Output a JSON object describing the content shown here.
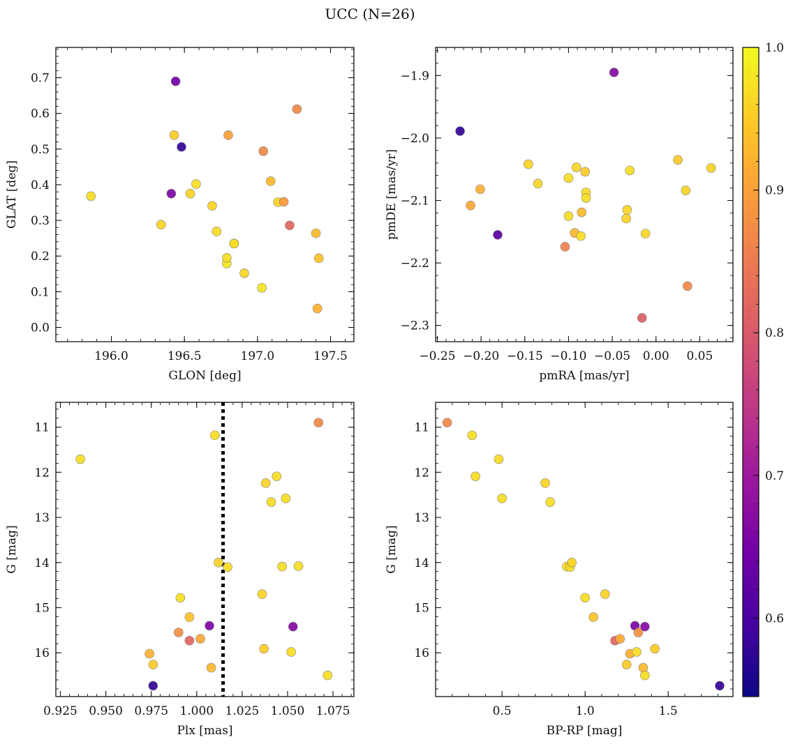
{
  "figure": {
    "title": "UCC (N=26)"
  },
  "colorbar": {
    "min": 0.545,
    "max": 1.0,
    "ticks": [
      0.6,
      0.7,
      0.8,
      0.9,
      1.0
    ],
    "tick_labels": [
      "0.6",
      "0.7",
      "0.8",
      "0.9",
      "1.0"
    ],
    "colormap": "plasma",
    "stops": [
      "#0d0887",
      "#46039f",
      "#7201a8",
      "#9c179e",
      "#bd3786",
      "#d8576b",
      "#ed7953",
      "#fb9f3a",
      "#fdca26",
      "#f0f921"
    ]
  },
  "chart_data": [
    {
      "type": "scatter",
      "id": "glon-glat",
      "xlabel": "GLON [deg]",
      "ylabel": "GLAT [deg]",
      "xlim": [
        195.62,
        197.66
      ],
      "ylim": [
        -0.04,
        0.785
      ],
      "y_inverted": false,
      "xticks": [
        196.0,
        196.5,
        197.0,
        197.5
      ],
      "xtick_labels": [
        "196.0",
        "196.5",
        "197.0",
        "197.5"
      ],
      "yticks": [
        0.0,
        0.1,
        0.2,
        0.3,
        0.4,
        0.5,
        0.6,
        0.7
      ],
      "ytick_labels": [
        "0.0",
        "0.1",
        "0.2",
        "0.3",
        "0.4",
        "0.5",
        "0.6",
        "0.7"
      ],
      "points": [
        {
          "x": 195.86,
          "y": 0.368,
          "c": 0.97
        },
        {
          "x": 196.34,
          "y": 0.288,
          "c": 0.96
        },
        {
          "x": 196.41,
          "y": 0.375,
          "c": 0.66
        },
        {
          "x": 196.43,
          "y": 0.539,
          "c": 0.95
        },
        {
          "x": 196.44,
          "y": 0.69,
          "c": 0.65
        },
        {
          "x": 196.48,
          "y": 0.506,
          "c": 0.58
        },
        {
          "x": 196.54,
          "y": 0.375,
          "c": 0.96
        },
        {
          "x": 196.58,
          "y": 0.402,
          "c": 0.97
        },
        {
          "x": 196.69,
          "y": 0.341,
          "c": 0.96
        },
        {
          "x": 196.72,
          "y": 0.269,
          "c": 0.97
        },
        {
          "x": 196.79,
          "y": 0.179,
          "c": 0.98
        },
        {
          "x": 196.79,
          "y": 0.195,
          "c": 0.97
        },
        {
          "x": 196.8,
          "y": 0.539,
          "c": 0.9
        },
        {
          "x": 196.84,
          "y": 0.235,
          "c": 0.96
        },
        {
          "x": 196.84,
          "y": 0.235,
          "c": 0.97
        },
        {
          "x": 196.91,
          "y": 0.152,
          "c": 0.96
        },
        {
          "x": 197.03,
          "y": 0.111,
          "c": 0.98
        },
        {
          "x": 197.04,
          "y": 0.494,
          "c": 0.87
        },
        {
          "x": 197.09,
          "y": 0.41,
          "c": 0.93
        },
        {
          "x": 197.14,
          "y": 0.351,
          "c": 0.96
        },
        {
          "x": 197.18,
          "y": 0.352,
          "c": 0.89
        },
        {
          "x": 197.22,
          "y": 0.286,
          "c": 0.82
        },
        {
          "x": 197.27,
          "y": 0.612,
          "c": 0.87
        },
        {
          "x": 197.4,
          "y": 0.264,
          "c": 0.93
        },
        {
          "x": 197.41,
          "y": 0.053,
          "c": 0.92
        },
        {
          "x": 197.42,
          "y": 0.194,
          "c": 0.94
        }
      ]
    },
    {
      "type": "scatter",
      "id": "pmra-pmde",
      "xlabel": "pmRA [mas/yr]",
      "ylabel": "pmDE [mas/yr]",
      "xlim": [
        -0.252,
        0.088
      ],
      "ylim": [
        -2.326,
        -1.855
      ],
      "y_inverted": false,
      "xticks": [
        -0.25,
        -0.2,
        -0.15,
        -0.1,
        -0.05,
        0.0,
        0.05
      ],
      "xtick_labels": [
        "−0.25",
        "−0.20",
        "−0.15",
        "−0.10",
        "−0.05",
        "0.00",
        "0.05"
      ],
      "yticks": [
        -2.3,
        -2.2,
        -2.1,
        -2.0,
        -1.9
      ],
      "ytick_labels": [
        "−2.3",
        "−2.2",
        "−2.1",
        "−2.0",
        "−1.9"
      ],
      "points": [
        {
          "x": -0.224,
          "y": -1.989,
          "c": 0.58
        },
        {
          "x": -0.212,
          "y": -2.108,
          "c": 0.91
        },
        {
          "x": -0.201,
          "y": -2.082,
          "c": 0.92
        },
        {
          "x": -0.181,
          "y": -2.155,
          "c": 0.62
        },
        {
          "x": -0.146,
          "y": -2.042,
          "c": 0.96
        },
        {
          "x": -0.135,
          "y": -2.073,
          "c": 0.96
        },
        {
          "x": -0.104,
          "y": -2.174,
          "c": 0.86
        },
        {
          "x": -0.1,
          "y": -2.125,
          "c": 0.97
        },
        {
          "x": -0.1,
          "y": -2.064,
          "c": 0.97
        },
        {
          "x": -0.093,
          "y": -2.152,
          "c": 0.93
        },
        {
          "x": -0.091,
          "y": -2.047,
          "c": 0.96
        },
        {
          "x": -0.086,
          "y": -2.157,
          "c": 0.97
        },
        {
          "x": -0.085,
          "y": -2.119,
          "c": 0.93
        },
        {
          "x": -0.081,
          "y": -2.054,
          "c": 0.95
        },
        {
          "x": -0.08,
          "y": -2.087,
          "c": 0.97
        },
        {
          "x": -0.08,
          "y": -2.096,
          "c": 0.97
        },
        {
          "x": -0.048,
          "y": -1.895,
          "c": 0.67
        },
        {
          "x": -0.034,
          "y": -2.129,
          "c": 0.96
        },
        {
          "x": -0.033,
          "y": -2.115,
          "c": 0.96
        },
        {
          "x": -0.03,
          "y": -2.052,
          "c": 0.97
        },
        {
          "x": -0.016,
          "y": -2.288,
          "c": 0.81
        },
        {
          "x": -0.012,
          "y": -2.153,
          "c": 0.96
        },
        {
          "x": 0.025,
          "y": -2.035,
          "c": 0.95
        },
        {
          "x": 0.034,
          "y": -2.084,
          "c": 0.96
        },
        {
          "x": 0.036,
          "y": -2.237,
          "c": 0.87
        },
        {
          "x": 0.063,
          "y": -2.048,
          "c": 0.96
        }
      ]
    },
    {
      "type": "scatter",
      "id": "plx-g",
      "xlabel": "Plx [mas]",
      "ylabel": "G [mag]",
      "xlim": [
        0.9225,
        1.0865
      ],
      "ylim": [
        16.97,
        10.45
      ],
      "y_inverted": true,
      "xticks": [
        0.925,
        0.95,
        0.975,
        1.0,
        1.025,
        1.05,
        1.075
      ],
      "xtick_labels": [
        "0.925",
        "0.950",
        "0.975",
        "1.000",
        "1.025",
        "1.050",
        "1.075"
      ],
      "yticks": [
        11,
        12,
        13,
        14,
        15,
        16
      ],
      "ytick_labels": [
        "11",
        "12",
        "13",
        "14",
        "15",
        "16"
      ],
      "vline": {
        "x": 1.0145,
        "style": "dotted"
      },
      "points": [
        {
          "x": 0.936,
          "y": 11.71,
          "c": 0.97
        },
        {
          "x": 0.974,
          "y": 16.02,
          "c": 0.92
        },
        {
          "x": 0.976,
          "y": 16.26,
          "c": 0.95
        },
        {
          "x": 0.976,
          "y": 16.73,
          "c": 0.58
        },
        {
          "x": 0.99,
          "y": 15.55,
          "c": 0.88
        },
        {
          "x": 0.991,
          "y": 14.78,
          "c": 0.97
        },
        {
          "x": 0.996,
          "y": 15.21,
          "c": 0.94
        },
        {
          "x": 0.996,
          "y": 15.73,
          "c": 0.82
        },
        {
          "x": 1.002,
          "y": 15.69,
          "c": 0.91
        },
        {
          "x": 1.007,
          "y": 15.4,
          "c": 0.66
        },
        {
          "x": 1.008,
          "y": 16.33,
          "c": 0.93
        },
        {
          "x": 1.01,
          "y": 11.18,
          "c": 0.97
        },
        {
          "x": 1.012,
          "y": 14.0,
          "c": 0.96
        },
        {
          "x": 1.017,
          "y": 14.1,
          "c": 0.97
        },
        {
          "x": 1.036,
          "y": 14.7,
          "c": 0.96
        },
        {
          "x": 1.037,
          "y": 15.91,
          "c": 0.95
        },
        {
          "x": 1.038,
          "y": 12.24,
          "c": 0.96
        },
        {
          "x": 1.041,
          "y": 12.66,
          "c": 0.97
        },
        {
          "x": 1.044,
          "y": 12.09,
          "c": 0.97
        },
        {
          "x": 1.047,
          "y": 14.09,
          "c": 0.97
        },
        {
          "x": 1.049,
          "y": 12.58,
          "c": 0.97
        },
        {
          "x": 1.052,
          "y": 15.98,
          "c": 0.97
        },
        {
          "x": 1.053,
          "y": 15.42,
          "c": 0.67
        },
        {
          "x": 1.056,
          "y": 14.08,
          "c": 0.97
        },
        {
          "x": 1.067,
          "y": 10.9,
          "c": 0.87
        },
        {
          "x": 1.072,
          "y": 16.5,
          "c": 0.97
        }
      ]
    },
    {
      "type": "scatter",
      "id": "bprp-g",
      "xlabel": "BP-RP [mag]",
      "ylabel": "G [mag]",
      "xlim": [
        0.1,
        1.89
      ],
      "ylim": [
        16.97,
        10.45
      ],
      "y_inverted": true,
      "xticks": [
        0.5,
        1.0,
        1.5
      ],
      "xtick_labels": [
        "0.5",
        "1.0",
        "1.5"
      ],
      "yticks": [
        11,
        12,
        13,
        14,
        15,
        16
      ],
      "ytick_labels": [
        "11",
        "12",
        "13",
        "14",
        "15",
        "16"
      ],
      "points": [
        {
          "x": 0.17,
          "y": 10.9,
          "c": 0.87
        },
        {
          "x": 0.32,
          "y": 11.18,
          "c": 0.97
        },
        {
          "x": 0.34,
          "y": 12.09,
          "c": 0.97
        },
        {
          "x": 0.48,
          "y": 11.71,
          "c": 0.97
        },
        {
          "x": 0.5,
          "y": 12.58,
          "c": 0.97
        },
        {
          "x": 0.76,
          "y": 12.24,
          "c": 0.96
        },
        {
          "x": 0.79,
          "y": 12.66,
          "c": 0.97
        },
        {
          "x": 0.89,
          "y": 14.09,
          "c": 0.97
        },
        {
          "x": 0.91,
          "y": 14.1,
          "c": 0.97
        },
        {
          "x": 0.92,
          "y": 14.0,
          "c": 0.96
        },
        {
          "x": 1.0,
          "y": 14.78,
          "c": 0.97
        },
        {
          "x": 1.05,
          "y": 15.21,
          "c": 0.94
        },
        {
          "x": 1.12,
          "y": 14.7,
          "c": 0.96
        },
        {
          "x": 1.18,
          "y": 15.73,
          "c": 0.82
        },
        {
          "x": 1.21,
          "y": 15.69,
          "c": 0.91
        },
        {
          "x": 1.25,
          "y": 16.26,
          "c": 0.95
        },
        {
          "x": 1.27,
          "y": 16.02,
          "c": 0.92
        },
        {
          "x": 1.3,
          "y": 15.4,
          "c": 0.66
        },
        {
          "x": 1.31,
          "y": 15.98,
          "c": 0.97
        },
        {
          "x": 1.32,
          "y": 15.55,
          "c": 0.88
        },
        {
          "x": 1.35,
          "y": 16.33,
          "c": 0.93
        },
        {
          "x": 1.36,
          "y": 15.42,
          "c": 0.67
        },
        {
          "x": 1.36,
          "y": 16.5,
          "c": 0.97
        },
        {
          "x": 1.42,
          "y": 15.91,
          "c": 0.95
        },
        {
          "x": 1.81,
          "y": 16.73,
          "c": 0.58
        }
      ]
    }
  ]
}
